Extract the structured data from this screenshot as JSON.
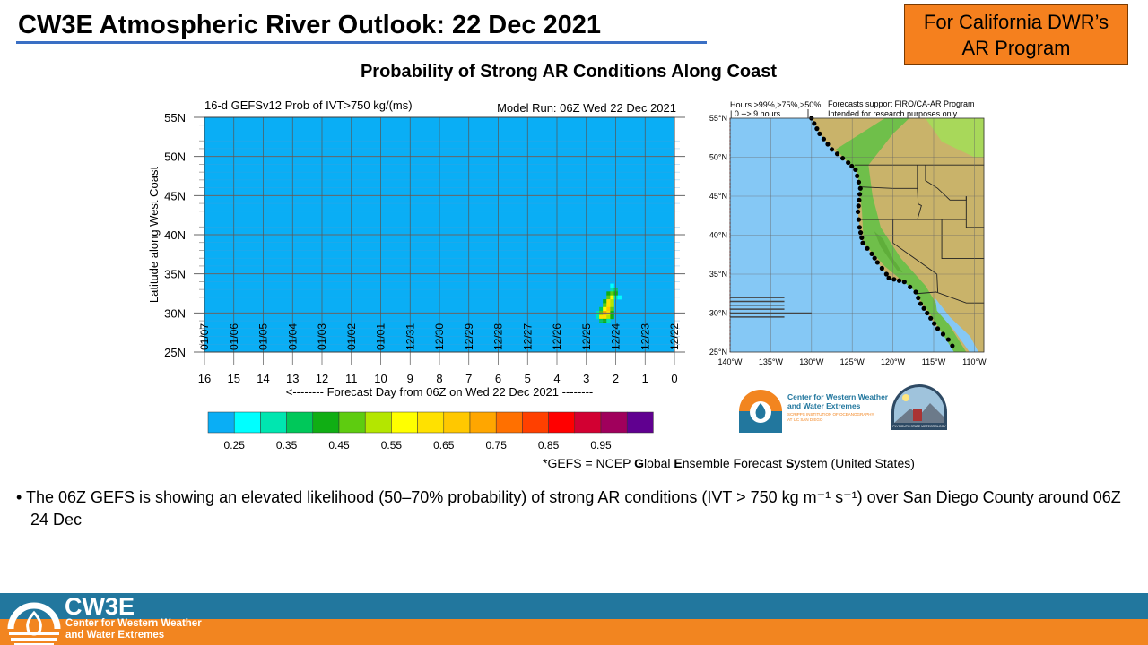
{
  "slide": {
    "title": "CW3E Atmospheric River Outlook: 22 Dec 2021",
    "badge_line1": "For California DWR’s",
    "badge_line2": "AR Program",
    "subtitle": "Probability of Strong AR Conditions Along Coast",
    "gefs_note_prefix": "*GEFS = NCEP ",
    "gefs_note_G": "G",
    "gefs_note_lobal": "lobal ",
    "gefs_note_E": "E",
    "gefs_note_nsemble": "nsemble ",
    "gefs_note_F": "F",
    "gefs_note_orecast": "orecast ",
    "gefs_note_S": "S",
    "gefs_note_rest": "ystem (United States)",
    "bullet": "• The 06Z GEFS is showing an elevated likelihood (50–70% probability) of strong AR conditions (IVT > 750 kg m⁻¹ s⁻¹) over San Diego County around 06Z 24 Dec",
    "footer_name": "CW3E",
    "footer_sub1": "Center for Western Weather",
    "footer_sub2": "and Water Extremes"
  },
  "map": {
    "legend_line1": "Hours >99%,>75%,>50%",
    "legend_line2": "| 0 --> 9 hours",
    "note_line1": "Forecasts support FIRO/CA-AR Program",
    "note_line2": "Intended for research purposes only",
    "lat_labels": [
      "55°N",
      "50°N",
      "45°N",
      "40°N",
      "35°N",
      "30°N",
      "25°N"
    ],
    "lon_labels": [
      "140°W",
      "135°W",
      "130°W",
      "125°W",
      "120°W",
      "115°W",
      "110°W"
    ],
    "hours_bars": [
      {
        "lat": 32.0,
        "hours": 6
      },
      {
        "lat": 31.5,
        "hours": 6
      },
      {
        "lat": 31.0,
        "hours": 6
      },
      {
        "lat": 30.5,
        "hours": 6
      },
      {
        "lat": 30.0,
        "hours": 9
      },
      {
        "lat": 29.5,
        "hours": 6
      }
    ],
    "logo1_line1": "Center for Western Weather",
    "logo1_line2": "and Water Extremes",
    "logo1_line3": "SCRIPPS INSTITUTION OF OCEANOGRAPHY",
    "logo1_line4": "AT UC SAN DIEGO",
    "logo2_text": "PLYMOUTH STATE METEOROLOGY",
    "colors": {
      "ocean": "#85c8f5",
      "land": "#c9b36a",
      "coast_dots": "#000000"
    }
  },
  "chart_data": {
    "type": "heatmap",
    "title": "16-d GEFSv12 Prob of IVT>750 kg/(ms)",
    "subtitle": "Model Run: 06Z Wed 22 Dec 2021",
    "xlabel": "<-------- Forecast Day from 06Z on Wed 22 Dec 2021 --------",
    "ylabel": "Latitude along West Coast",
    "xlim": [
      16,
      0
    ],
    "ylim": [
      25,
      55
    ],
    "x_ticks": [
      16,
      15,
      14,
      13,
      12,
      11,
      10,
      9,
      8,
      7,
      6,
      5,
      4,
      3,
      2,
      1,
      0
    ],
    "x_tick_labels": [
      "16",
      "15",
      "14",
      "13",
      "12",
      "11",
      "10",
      "9",
      "8",
      "7",
      "6",
      "5",
      "4",
      "3",
      "2",
      "1",
      "0"
    ],
    "date_labels": [
      "01/07",
      "01/06",
      "01/05",
      "01/04",
      "01/03",
      "01/02",
      "01/01",
      "12/31",
      "12/30",
      "12/29",
      "12/28",
      "12/27",
      "12/26",
      "12/25",
      "12/24",
      "12/23",
      "12/22"
    ],
    "y_ticks": [
      55,
      50,
      45,
      40,
      35,
      30,
      25
    ],
    "y_tick_labels": [
      "55N",
      "50N",
      "45N",
      "40N",
      "35N",
      "30N",
      "25N"
    ],
    "background_value": 0.2,
    "cell_size": {
      "day": 0.125,
      "lat": 0.5
    },
    "cells": [
      [
        2.125,
        33.5,
        0.25
      ],
      [
        2.125,
        33.0,
        0.3
      ],
      [
        2.0,
        33.0,
        0.35
      ],
      [
        2.25,
        32.5,
        0.4
      ],
      [
        2.125,
        32.5,
        0.45
      ],
      [
        2.0,
        32.5,
        0.4
      ],
      [
        2.25,
        32.0,
        0.45
      ],
      [
        2.125,
        32.0,
        0.55
      ],
      [
        2.0,
        32.0,
        0.3
      ],
      [
        1.875,
        32.0,
        0.25
      ],
      [
        2.375,
        31.5,
        0.4
      ],
      [
        2.25,
        31.5,
        0.6
      ],
      [
        2.125,
        31.5,
        0.5
      ],
      [
        2.375,
        31.0,
        0.45
      ],
      [
        2.25,
        31.0,
        0.6
      ],
      [
        2.125,
        31.0,
        0.5
      ],
      [
        2.5,
        30.5,
        0.35
      ],
      [
        2.375,
        30.5,
        0.55
      ],
      [
        2.25,
        30.5,
        0.65
      ],
      [
        2.125,
        30.5,
        0.45
      ],
      [
        2.625,
        30.0,
        0.3
      ],
      [
        2.5,
        30.0,
        0.45
      ],
      [
        2.375,
        30.0,
        0.7
      ],
      [
        2.25,
        30.0,
        0.6
      ],
      [
        2.125,
        30.0,
        0.4
      ],
      [
        2.625,
        29.5,
        0.3
      ],
      [
        2.5,
        29.5,
        0.6
      ],
      [
        2.375,
        29.5,
        0.6
      ],
      [
        2.25,
        29.5,
        0.5
      ],
      [
        2.125,
        29.5,
        0.4
      ],
      [
        2.5,
        29.0,
        0.35
      ],
      [
        2.375,
        29.0,
        0.4
      ],
      [
        2.25,
        29.0,
        0.3
      ]
    ],
    "colorbar": {
      "boundaries": [
        0.25,
        0.3,
        0.35,
        0.4,
        0.45,
        0.5,
        0.55,
        0.6,
        0.65,
        0.7,
        0.75,
        0.8,
        0.85,
        0.9,
        0.95,
        1.0
      ],
      "labels": [
        "0.25",
        "0.35",
        "0.45",
        "0.55",
        "0.65",
        "0.75",
        "0.85",
        "0.95"
      ],
      "colors": [
        "#0aaef5",
        "#00ffff",
        "#00e6b0",
        "#00c85a",
        "#10ae14",
        "#5ecc10",
        "#b4e600",
        "#ffff00",
        "#ffe100",
        "#ffc800",
        "#ffa600",
        "#ff7000",
        "#ff4000",
        "#ff0000",
        "#d20032",
        "#a0005c",
        "#600090"
      ]
    }
  }
}
